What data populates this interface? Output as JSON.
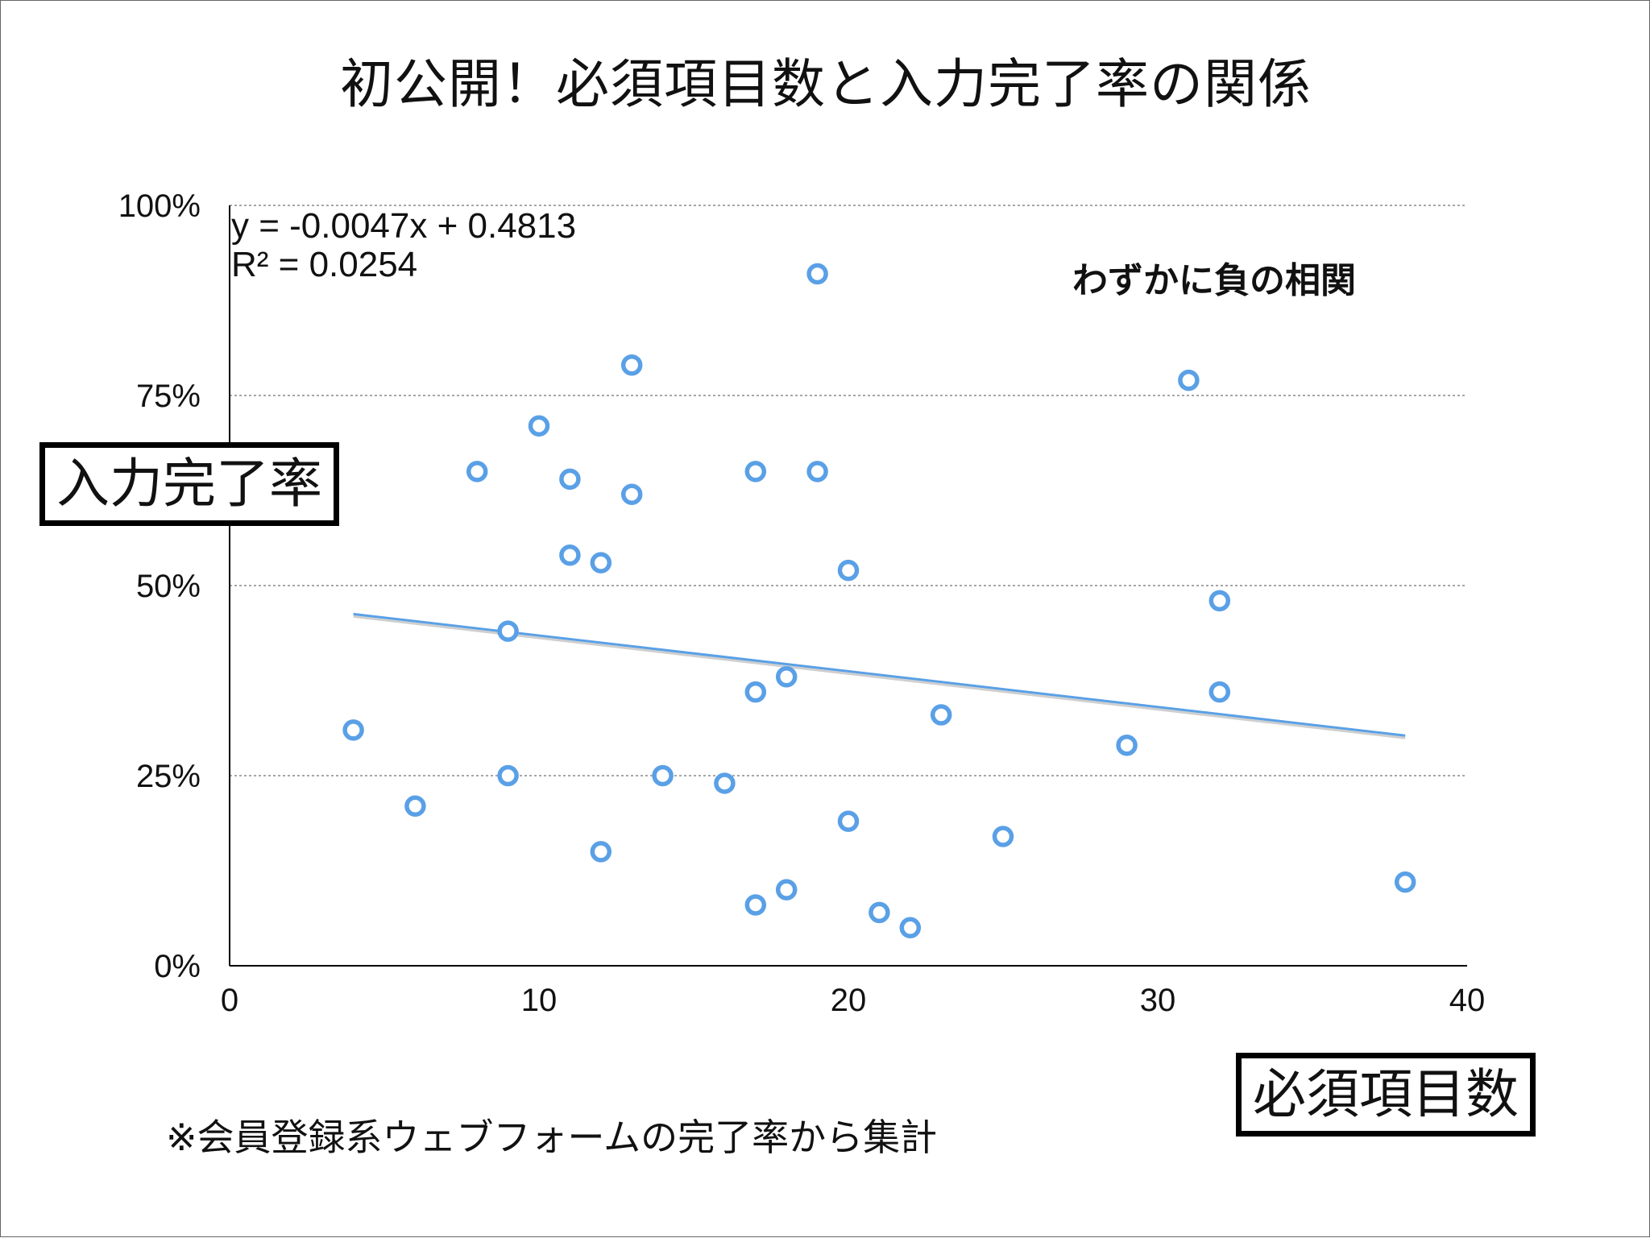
{
  "title": "初公開！必須項目数と入力完了率の関係",
  "ylabel": "入力完了率",
  "xlabel": "必須項目数",
  "footnote": "※会員登録系ウェブフォームの完了率から集計",
  "annotation": "わずかに負の相関",
  "equation_line1": "y = -0.0047x + 0.4813",
  "equation_line2": "R² = 0.0254",
  "colors": {
    "point": "#5aa0e6",
    "trendline": "#5aa0e6",
    "grid": "#888888",
    "axis": "#000000"
  },
  "chart_data": {
    "type": "scatter",
    "title": "初公開！必須項目数と入力完了率の関係",
    "xlabel": "必須項目数",
    "ylabel": "入力完了率",
    "xlim": [
      0,
      40
    ],
    "ylim": [
      0,
      1
    ],
    "x_ticks": [
      "0",
      "10",
      "20",
      "30",
      "40"
    ],
    "y_ticks": [
      "0%",
      "25%",
      "50%",
      "75%",
      "100%"
    ],
    "grid": "horizontal dotted",
    "points": [
      {
        "x": 4,
        "y": 0.31
      },
      {
        "x": 6,
        "y": 0.21
      },
      {
        "x": 8,
        "y": 0.65
      },
      {
        "x": 9,
        "y": 0.44
      },
      {
        "x": 9,
        "y": 0.25
      },
      {
        "x": 10,
        "y": 0.71
      },
      {
        "x": 11,
        "y": 0.64
      },
      {
        "x": 11,
        "y": 0.54
      },
      {
        "x": 12,
        "y": 0.53
      },
      {
        "x": 12,
        "y": 0.15
      },
      {
        "x": 13,
        "y": 0.79
      },
      {
        "x": 13,
        "y": 0.62
      },
      {
        "x": 14,
        "y": 0.25
      },
      {
        "x": 16,
        "y": 0.24
      },
      {
        "x": 17,
        "y": 0.65
      },
      {
        "x": 17,
        "y": 0.36
      },
      {
        "x": 17,
        "y": 0.08
      },
      {
        "x": 18,
        "y": 0.38
      },
      {
        "x": 18,
        "y": 0.1
      },
      {
        "x": 19,
        "y": 0.91
      },
      {
        "x": 19,
        "y": 0.65
      },
      {
        "x": 20,
        "y": 0.52
      },
      {
        "x": 20,
        "y": 0.19
      },
      {
        "x": 21,
        "y": 0.07
      },
      {
        "x": 22,
        "y": 0.05
      },
      {
        "x": 23,
        "y": 0.33
      },
      {
        "x": 25,
        "y": 0.17
      },
      {
        "x": 29,
        "y": 0.29
      },
      {
        "x": 31,
        "y": 0.77
      },
      {
        "x": 32,
        "y": 0.48
      },
      {
        "x": 32,
        "y": 0.36
      },
      {
        "x": 38,
        "y": 0.11
      }
    ],
    "trendline": {
      "slope": -0.0047,
      "intercept": 0.4813,
      "x_range": [
        4,
        38
      ],
      "r_squared": 0.0254
    }
  }
}
